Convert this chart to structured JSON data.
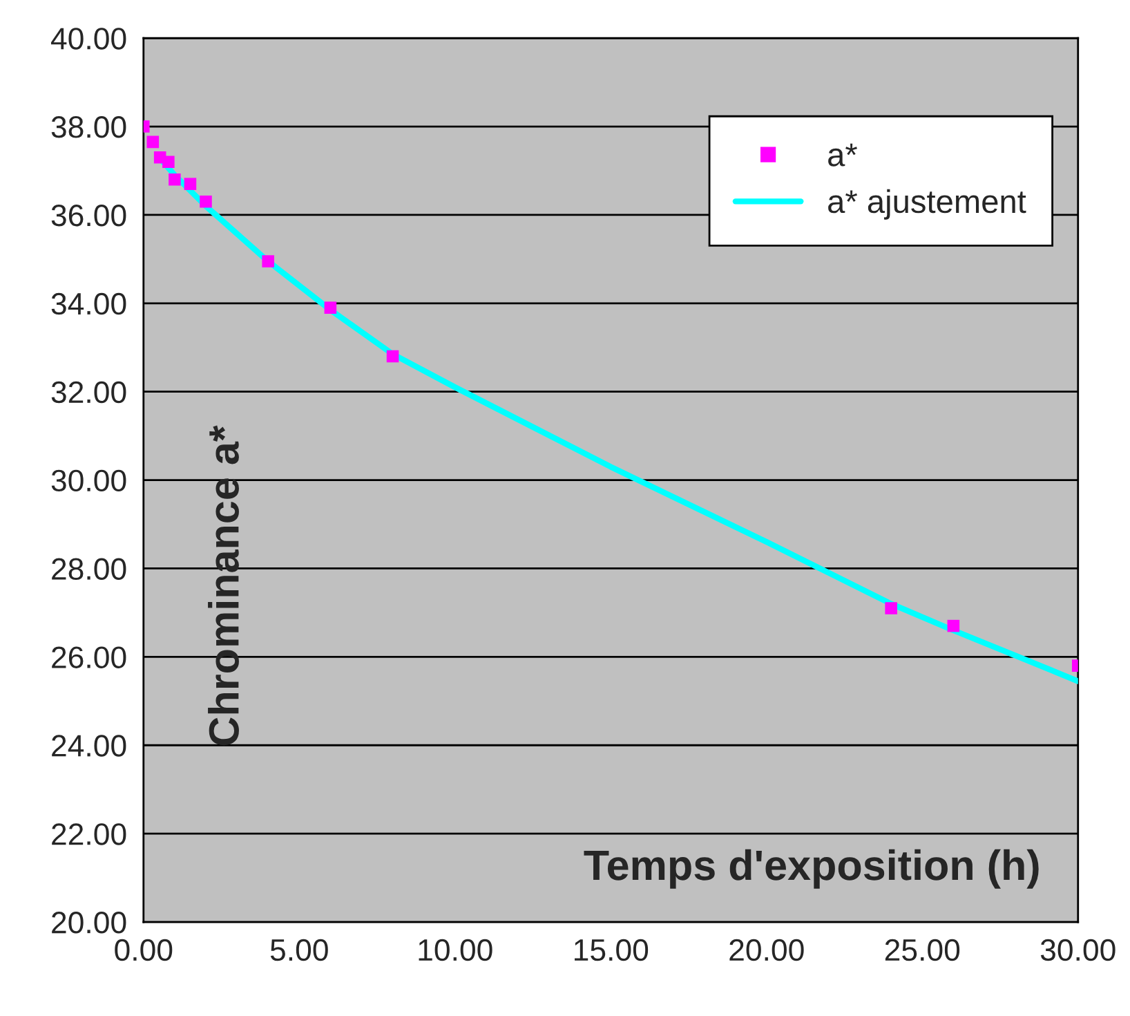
{
  "chart_data": {
    "type": "scatter",
    "xlabel": "Temps d'exposition (h)",
    "ylabel": "Chrominance a*",
    "series": [
      {
        "name": "a*",
        "color": "#ff00ff",
        "marker": "square",
        "x": [
          0,
          0.3,
          0.53,
          0.8,
          1.0,
          1.5,
          2.0,
          4.0,
          6.0,
          8.0,
          24.0,
          26.0,
          30.0
        ],
        "values": [
          38.0,
          37.65,
          37.3,
          37.2,
          36.8,
          36.7,
          36.3,
          34.95,
          33.9,
          32.8,
          27.1,
          26.7,
          25.8
        ]
      },
      {
        "name": "a* ajustement",
        "type": "line",
        "color": "#00ffff",
        "marker": "none",
        "line_style": "solid",
        "x": [
          0.5,
          1,
          2,
          4,
          6,
          8,
          10,
          15,
          20,
          24,
          26,
          30
        ],
        "values": [
          37.3,
          36.9,
          36.2,
          34.95,
          33.85,
          32.85,
          32.1,
          30.3,
          28.6,
          27.2,
          26.6,
          25.45
        ]
      }
    ],
    "xlim": [
      0,
      30
    ],
    "ylim": [
      20,
      40
    ],
    "xticks": [
      {
        "value": 0,
        "label": "0.00"
      },
      {
        "value": 5,
        "label": "5.00"
      },
      {
        "value": 10,
        "label": "10.00"
      },
      {
        "value": 15,
        "label": "15.00"
      },
      {
        "value": 20,
        "label": "20.00"
      },
      {
        "value": 25,
        "label": "25.00"
      },
      {
        "value": 30,
        "label": "30.00"
      }
    ],
    "yticks": [
      {
        "value": 20,
        "label": "20.00"
      },
      {
        "value": 22,
        "label": "22.00"
      },
      {
        "value": 24,
        "label": "24.00"
      },
      {
        "value": 26,
        "label": "26.00"
      },
      {
        "value": 28,
        "label": "28.00"
      },
      {
        "value": 30,
        "label": "30.00"
      },
      {
        "value": 32,
        "label": "32.00"
      },
      {
        "value": 34,
        "label": "34.00"
      },
      {
        "value": 36,
        "label": "36.00"
      },
      {
        "value": 38,
        "label": "38.00"
      },
      {
        "value": 40,
        "label": "40.00"
      }
    ],
    "grid": "y",
    "legend": "top right"
  }
}
